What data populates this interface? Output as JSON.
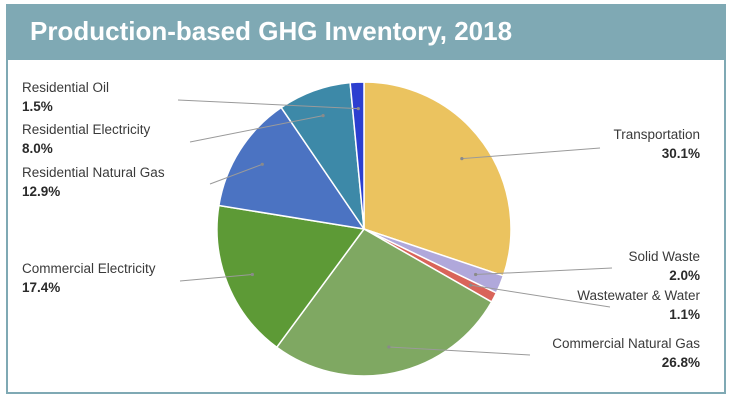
{
  "title": "Production-based GHG Inventory, 2018",
  "chart_data": {
    "type": "pie",
    "title": "Production-based GHG Inventory, 2018",
    "slices": [
      {
        "label": "Transportation",
        "percent_label": "30.1%",
        "value": 30.1,
        "color": "#ebc35f"
      },
      {
        "label": "Solid Waste",
        "percent_label": "2.0%",
        "value": 2.0,
        "color": "#b0a8db"
      },
      {
        "label": "Wastewater & Water",
        "percent_label": "1.1%",
        "value": 1.1,
        "color": "#d9645a"
      },
      {
        "label": "Commercial Natural Gas",
        "percent_label": "26.8%",
        "value": 26.8,
        "color": "#7fa862"
      },
      {
        "label": "Commercial Electricity",
        "percent_label": "17.4%",
        "value": 17.4,
        "color": "#5d9a36"
      },
      {
        "label": "Residential Natural Gas",
        "percent_label": "12.9%",
        "value": 12.9,
        "color": "#4b73c2"
      },
      {
        "label": "Residential Electricity",
        "percent_label": "8.0%",
        "value": 8.0,
        "color": "#3d89a8"
      },
      {
        "label": "Residential Oil",
        "percent_label": "1.5%",
        "value": 1.5,
        "color": "#2c3fd0"
      }
    ]
  }
}
